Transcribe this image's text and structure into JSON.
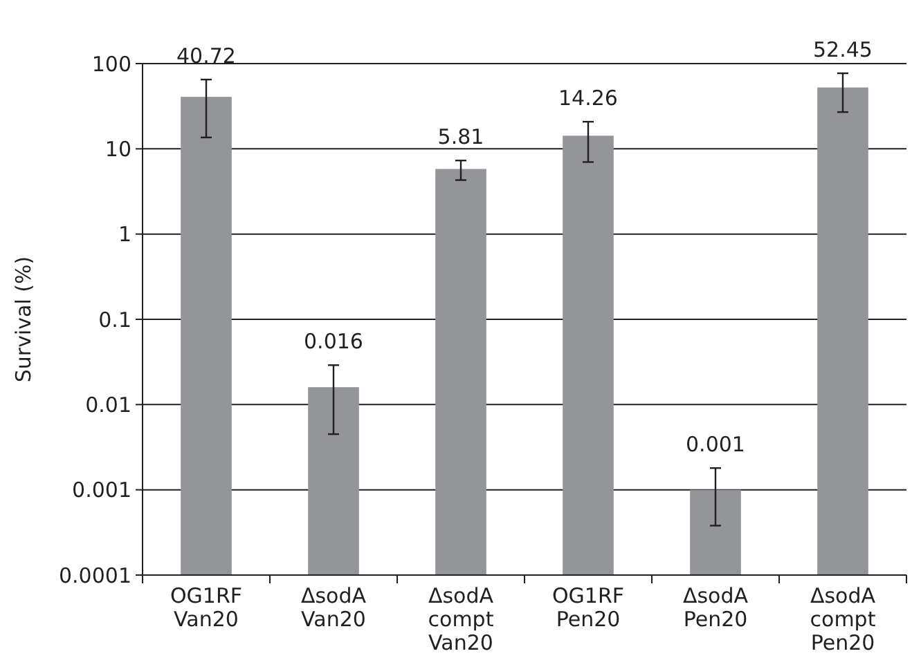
{
  "chart_data": {
    "type": "bar",
    "ylabel": "Survival (%)",
    "categories": [
      "OG1RF\nVan20",
      "ΔsodA\nVan20",
      "ΔsodA\ncompt\nVan20",
      "OG1RF\nPen20",
      "ΔsodA\nPen20",
      "ΔsodA\ncompt\nPen20"
    ],
    "values": [
      40.72,
      0.016,
      5.81,
      14.26,
      0.001,
      52.45
    ],
    "errors": [
      [
        13.6,
        65
      ],
      [
        0.0045,
        0.029
      ],
      [
        4.3,
        7.3
      ],
      [
        7.0,
        20.8
      ],
      [
        0.00038,
        0.0018
      ],
      [
        27,
        77
      ]
    ],
    "color": "#939598",
    "log": true,
    "ylim": [
      0.0001,
      100
    ],
    "yticks": [
      0.0001,
      0.001,
      0.01,
      0.1,
      1,
      10,
      100
    ],
    "grid": "y",
    "data_labels": true
  }
}
